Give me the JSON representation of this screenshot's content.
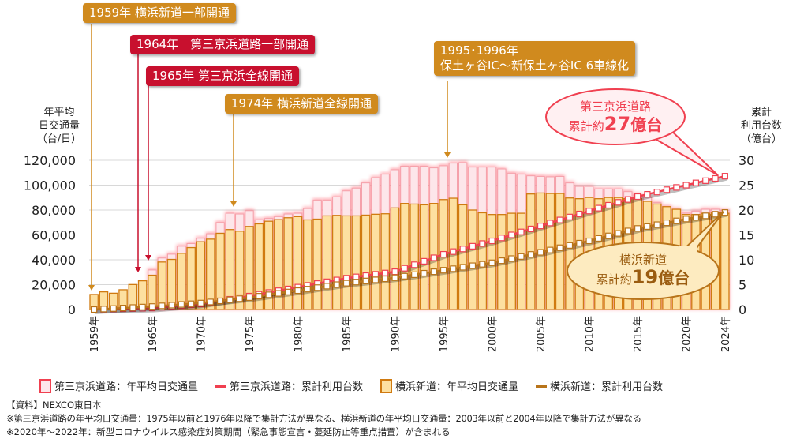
{
  "chart_data": {
    "type": "bar",
    "title": "",
    "left_axis": {
      "label": "年平均\n日交通量\n（台/日）",
      "ylim": [
        0,
        120000
      ],
      "ticks": [
        "0",
        "20,000",
        "40,000",
        "60,000",
        "80,000",
        "100,000",
        "120,000"
      ]
    },
    "right_axis": {
      "label": "累計\n利用台数\n（億台）",
      "ylim": [
        0,
        30
      ],
      "ticks": [
        "0",
        "5",
        "10",
        "15",
        "20",
        "25",
        "30"
      ]
    },
    "grid": true,
    "years": [
      1959,
      1960,
      1961,
      1962,
      1963,
      1964,
      1965,
      1966,
      1967,
      1968,
      1969,
      1970,
      1971,
      1972,
      1973,
      1974,
      1975,
      1976,
      1977,
      1978,
      1979,
      1980,
      1981,
      1982,
      1983,
      1984,
      1985,
      1986,
      1987,
      1988,
      1989,
      1990,
      1991,
      1992,
      1993,
      1994,
      1995,
      1996,
      1997,
      1998,
      1999,
      2000,
      2001,
      2002,
      2003,
      2004,
      2005,
      2006,
      2007,
      2008,
      2009,
      2010,
      2011,
      2012,
      2013,
      2014,
      2015,
      2016,
      2017,
      2018,
      2019,
      2020,
      2021,
      2022,
      2023,
      2024
    ],
    "x_tick_labels": [
      {
        "year": 1959,
        "label": "1959年"
      },
      {
        "year": 1965,
        "label": "1965年"
      },
      {
        "year": 1970,
        "label": "1970年"
      },
      {
        "year": 1975,
        "label": "1975年"
      },
      {
        "year": 1980,
        "label": "1980年"
      },
      {
        "year": 1985,
        "label": "1985年"
      },
      {
        "year": 1990,
        "label": "1990年"
      },
      {
        "year": 1995,
        "label": "1995年"
      },
      {
        "year": 2000,
        "label": "2000年"
      },
      {
        "year": 2005,
        "label": "2005年"
      },
      {
        "year": 2010,
        "label": "2010年"
      },
      {
        "year": 2015,
        "label": "2015年"
      },
      {
        "year": 2020,
        "label": "2020年"
      },
      {
        "year": 2024,
        "label": "2024年"
      }
    ],
    "series": [
      {
        "name": "第三京浜道路：年平均日交通量",
        "type": "bar",
        "axis": "left",
        "color": "#f04050",
        "fill": "#fde6ea",
        "values": [
          null,
          null,
          null,
          null,
          null,
          null,
          31800,
          41400,
          44500,
          50900,
          53000,
          57300,
          60900,
          70000,
          77400,
          76800,
          79500,
          72100,
          73200,
          74700,
          76800,
          77400,
          81200,
          88000,
          88000,
          90600,
          95400,
          97600,
          101800,
          106000,
          108800,
          112400,
          115200,
          115200,
          115200,
          113900,
          115600,
          117700,
          118100,
          114500,
          114500,
          114500,
          113000,
          109600,
          108800,
          107500,
          107000,
          106700,
          107000,
          101800,
          99000,
          99000,
          96900,
          96900,
          96900,
          94800,
          92300,
          90100,
          85900,
          82700,
          80600,
          77400,
          79100,
          80600,
          80600,
          79500
        ]
      },
      {
        "name": "第三京浜道路：累計利用台数",
        "type": "line",
        "axis": "right",
        "color": "#f04050",
        "values": [
          0,
          0.05,
          0.1,
          0.15,
          0.2,
          0.25,
          0.3,
          0.46,
          0.62,
          0.78,
          0.94,
          1.1,
          1.42,
          1.74,
          2.06,
          2.38,
          2.7,
          3.06,
          3.42,
          3.78,
          4.14,
          4.5,
          4.86,
          5.22,
          5.58,
          5.94,
          6.3,
          6.56,
          6.82,
          7.08,
          7.34,
          7.6,
          8.3,
          9.0,
          9.7,
          10.4,
          11.1,
          11.64,
          12.18,
          12.72,
          13.26,
          13.8,
          14.4,
          15.0,
          15.6,
          16.2,
          16.8,
          17.4,
          18.0,
          18.6,
          19.2,
          19.8,
          20.38,
          20.96,
          21.54,
          22.12,
          22.7,
          23.16,
          23.62,
          24.08,
          24.54,
          25.0,
          25.45,
          25.9,
          26.35,
          26.8
        ]
      },
      {
        "name": "横浜新道：年平均日交通量",
        "type": "bar",
        "axis": "left",
        "color": "#d07a10",
        "fill": "#fde0a0",
        "values": [
          12100,
          14200,
          13100,
          15900,
          20100,
          23100,
          27600,
          38200,
          40300,
          45200,
          49800,
          54500,
          56600,
          61300,
          64300,
          63000,
          66800,
          68900,
          71000,
          72300,
          73800,
          74700,
          72100,
          72700,
          75300,
          75700,
          75300,
          75300,
          75900,
          76600,
          77000,
          81700,
          85300,
          84800,
          84200,
          85300,
          88400,
          89500,
          84200,
          80000,
          77800,
          76400,
          76400,
          77400,
          77400,
          92900,
          93700,
          93300,
          93300,
          89700,
          89100,
          90100,
          89100,
          90100,
          90100,
          89100,
          89100,
          87000,
          84800,
          82700,
          80600,
          76400,
          76400,
          77400,
          77800,
          77400
        ]
      },
      {
        "name": "横浜新道：累計利用台数",
        "type": "line",
        "axis": "right",
        "color": "#b8741a",
        "values": [
          0,
          0.1,
          0.2,
          0.3,
          0.4,
          0.5,
          0.6,
          0.74,
          0.88,
          1.02,
          1.16,
          1.3,
          1.52,
          1.74,
          1.96,
          2.18,
          2.4,
          2.68,
          2.96,
          3.24,
          3.52,
          3.8,
          4.1,
          4.4,
          4.7,
          5.0,
          5.3,
          5.52,
          5.74,
          5.96,
          6.18,
          6.4,
          6.7,
          7.0,
          7.3,
          7.6,
          7.9,
          8.2,
          8.5,
          8.8,
          9.1,
          9.4,
          9.82,
          10.24,
          10.66,
          11.08,
          11.5,
          11.96,
          12.42,
          12.88,
          13.34,
          13.8,
          14.3,
          14.8,
          15.3,
          15.8,
          16.3,
          16.68,
          17.06,
          17.44,
          17.82,
          18.2,
          18.52,
          18.84,
          19.16,
          19.5
        ]
      }
    ],
    "annotations": [
      {
        "year": 1959,
        "text": "1959年 横浜新道一部開通",
        "color": "#d08a1e"
      },
      {
        "year": 1964,
        "text": "1964年　第三京浜道路一部開通",
        "color": "#c8102e"
      },
      {
        "year": 1965,
        "text": "1965年 第三京浜全線開通",
        "color": "#c8102e"
      },
      {
        "year": 1974,
        "text": "1974年 横浜新道全線開通",
        "color": "#d08a1e"
      },
      {
        "year": 1995,
        "text_line1": "1995･1996年",
        "text_line2": "保土ヶ谷IC～新保土ヶ谷IC 6車線化",
        "color": "#d08a1e"
      }
    ],
    "callouts": [
      {
        "line1": "第三京浜道路",
        "prefix": "累計約",
        "value": "27",
        "unit": "億台",
        "color": "#f04050"
      },
      {
        "line1": "横浜新道",
        "prefix": "累計約",
        "value": "19",
        "unit": "億台",
        "color": "#b8741a"
      }
    ],
    "legend_placement": "bottom"
  },
  "notes": {
    "source": "【資料】NEXCO東日本",
    "note1": "※第三京浜道路の年平均日交通量：1975年以前と1976年以降で集計方法が異なる、横浜新道の年平均日交通量：2003年以前と2004年以降で集計方法が異なる",
    "note2": "※2020年～2022年：新型コロナウイルス感染症対策期間（緊急事態宣言・蔓延防止等重点措置）が含まれる"
  }
}
